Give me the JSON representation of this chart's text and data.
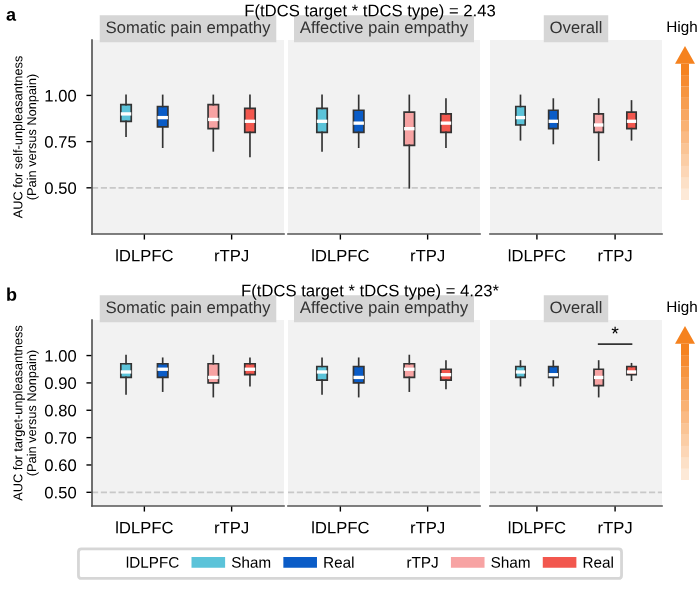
{
  "chart_data": [
    {
      "type": "box",
      "title": "Somatic pain empathy",
      "ylabel": "AUC for self-unpleasantness\n(Pain versus Nonpain)",
      "categories": [
        "lDLPFC",
        "rTPJ"
      ],
      "ylim": [
        0.25,
        1.3
      ],
      "yticks": [
        {
          "value": 0.5,
          "label": "0.50"
        },
        {
          "value": 0.75,
          "label": "0.75"
        },
        {
          "value": 1.0,
          "label": "1.00"
        }
      ],
      "ref_lines": [
        {
          "axis": "y",
          "value": 0.5,
          "color": "#c8c8c8",
          "line_style": "dashed"
        }
      ],
      "annotations": [
        "a",
        "F(tDCS target * tDCS type) = 2.43"
      ],
      "grid": false,
      "legend": "bottom",
      "series": [
        {
          "name": "Sham",
          "color": "#5bc3d9",
          "boxes": [
            {
              "low": 0.78,
              "q1": 0.86,
              "median": 0.9,
              "q3": 0.95,
              "high": 1.0
            },
            null
          ]
        },
        {
          "name": "Real",
          "color": "#0a5cc7",
          "boxes": [
            {
              "low": 0.72,
              "q1": 0.83,
              "median": 0.88,
              "q3": 0.94,
              "high": 1.0
            },
            null
          ]
        },
        {
          "name": "Sham",
          "color": "#f7a3a3",
          "boxes": [
            null,
            {
              "low": 0.7,
              "q1": 0.82,
              "median": 0.87,
              "q3": 0.95,
              "high": 1.0
            }
          ]
        },
        {
          "name": "Real",
          "color": "#f2574e",
          "boxes": [
            null,
            {
              "low": 0.67,
              "q1": 0.8,
              "median": 0.86,
              "q3": 0.93,
              "high": 1.0
            }
          ]
        }
      ]
    },
    {
      "type": "box",
      "title": "Affective pain empathy",
      "categories": [
        "lDLPFC",
        "rTPJ"
      ],
      "ylim": [
        0.25,
        1.3
      ],
      "tick_labels": "x",
      "ref_lines": [
        {
          "axis": "y",
          "value": 0.5,
          "color": "#c8c8c8",
          "line_style": "dashed"
        }
      ],
      "grid": false,
      "series": [
        {
          "color": "#5bc3d9",
          "boxes": [
            {
              "low": 0.7,
              "q1": 0.8,
              "median": 0.86,
              "q3": 0.93,
              "high": 1.0
            },
            null
          ]
        },
        {
          "color": "#0a5cc7",
          "boxes": [
            {
              "low": 0.72,
              "q1": 0.8,
              "median": 0.85,
              "q3": 0.92,
              "high": 1.0
            },
            null
          ]
        },
        {
          "color": "#f7a3a3",
          "boxes": [
            null,
            {
              "low": 0.5,
              "q1": 0.73,
              "median": 0.82,
              "q3": 0.91,
              "high": 1.0
            }
          ]
        },
        {
          "color": "#f2574e",
          "boxes": [
            null,
            {
              "low": 0.72,
              "q1": 0.8,
              "median": 0.85,
              "q3": 0.9,
              "high": 0.98
            }
          ]
        }
      ]
    },
    {
      "type": "box",
      "title": "Overall",
      "categories": [
        "lDLPFC",
        "rTPJ"
      ],
      "ylim": [
        0.25,
        1.3
      ],
      "tick_labels": "x",
      "ref_lines": [
        {
          "axis": "y",
          "value": 0.5,
          "color": "#c8c8c8",
          "line_style": "dashed"
        }
      ],
      "annotations": [
        "High"
      ],
      "grid": false,
      "series": [
        {
          "color": "#5bc3d9",
          "boxes": [
            {
              "low": 0.76,
              "q1": 0.84,
              "median": 0.88,
              "q3": 0.94,
              "high": 1.0
            },
            null
          ]
        },
        {
          "color": "#0a5cc7",
          "boxes": [
            {
              "low": 0.74,
              "q1": 0.82,
              "median": 0.86,
              "q3": 0.92,
              "high": 0.98
            },
            null
          ]
        },
        {
          "color": "#f7a3a3",
          "boxes": [
            null,
            {
              "low": 0.65,
              "q1": 0.8,
              "median": 0.84,
              "q3": 0.9,
              "high": 0.98
            }
          ]
        },
        {
          "color": "#f2574e",
          "boxes": [
            null,
            {
              "low": 0.76,
              "q1": 0.82,
              "median": 0.86,
              "q3": 0.91,
              "high": 0.97
            }
          ]
        }
      ]
    },
    {
      "type": "box",
      "title": "Somatic pain empathy",
      "ylabel": "AUC for target-unpleasantness\n(Pain versus Nonpain)",
      "categories": [
        "lDLPFC",
        "rTPJ"
      ],
      "ylim": [
        0.45,
        1.13
      ],
      "yticks": [
        {
          "value": 0.5,
          "label": "0.50"
        },
        {
          "value": 0.6,
          "label": "0.60"
        },
        {
          "value": 0.7,
          "label": "0.70"
        },
        {
          "value": 0.8,
          "label": "0.80"
        },
        {
          "value": 0.9,
          "label": "0.90"
        },
        {
          "value": 1.0,
          "label": "1.00"
        }
      ],
      "ref_lines": [
        {
          "axis": "y",
          "value": 0.5,
          "color": "#c8c8c8",
          "line_style": "dashed"
        }
      ],
      "annotations": [
        "b",
        "F(tDCS target * tDCS type) = 4.23*"
      ],
      "grid": false,
      "series": [
        {
          "color": "#5bc3d9",
          "boxes": [
            {
              "low": 0.86,
              "q1": 0.92,
              "median": 0.94,
              "q3": 0.97,
              "high": 1.0
            },
            null
          ]
        },
        {
          "color": "#0a5cc7",
          "boxes": [
            {
              "low": 0.87,
              "q1": 0.92,
              "median": 0.95,
              "q3": 0.97,
              "high": 0.99
            },
            null
          ]
        },
        {
          "color": "#f7a3a3",
          "boxes": [
            null,
            {
              "low": 0.85,
              "q1": 0.9,
              "median": 0.92,
              "q3": 0.97,
              "high": 1.0
            }
          ]
        },
        {
          "color": "#f2574e",
          "boxes": [
            null,
            {
              "low": 0.89,
              "q1": 0.93,
              "median": 0.95,
              "q3": 0.97,
              "high": 0.99
            }
          ]
        }
      ]
    },
    {
      "type": "box",
      "title": "Affective pain empathy",
      "categories": [
        "lDLPFC",
        "rTPJ"
      ],
      "ylim": [
        0.45,
        1.13
      ],
      "tick_labels": "x",
      "ref_lines": [
        {
          "axis": "y",
          "value": 0.5,
          "color": "#c8c8c8",
          "line_style": "dashed"
        }
      ],
      "grid": false,
      "series": [
        {
          "color": "#5bc3d9",
          "boxes": [
            {
              "low": 0.86,
              "q1": 0.91,
              "median": 0.94,
              "q3": 0.96,
              "high": 0.99
            },
            null
          ]
        },
        {
          "color": "#0a5cc7",
          "boxes": [
            {
              "low": 0.85,
              "q1": 0.9,
              "median": 0.92,
              "q3": 0.96,
              "high": 0.99
            },
            null
          ]
        },
        {
          "color": "#f7a3a3",
          "boxes": [
            null,
            {
              "low": 0.87,
              "q1": 0.92,
              "median": 0.95,
              "q3": 0.97,
              "high": 1.0
            }
          ]
        },
        {
          "color": "#f2574e",
          "boxes": [
            null,
            {
              "low": 0.88,
              "q1": 0.91,
              "median": 0.93,
              "q3": 0.95,
              "high": 0.98
            }
          ]
        }
      ]
    },
    {
      "type": "box",
      "title": "Overall",
      "categories": [
        "lDLPFC",
        "rTPJ"
      ],
      "ylim": [
        0.45,
        1.13
      ],
      "tick_labels": "x",
      "ref_lines": [
        {
          "axis": "y",
          "value": 0.5,
          "color": "#c8c8c8",
          "line_style": "dashed"
        }
      ],
      "annotations": [
        "*",
        "High"
      ],
      "grid": false,
      "series": [
        {
          "color": "#5bc3d9",
          "boxes": [
            {
              "low": 0.89,
              "q1": 0.92,
              "median": 0.94,
              "q3": 0.96,
              "high": 0.98
            },
            null
          ]
        },
        {
          "color": "#0a5cc7",
          "boxes": [
            {
              "low": 0.89,
              "q1": 0.92,
              "median": 0.93,
              "q3": 0.96,
              "high": 0.98
            },
            null
          ]
        },
        {
          "color": "#f7a3a3",
          "boxes": [
            null,
            {
              "low": 0.85,
              "q1": 0.89,
              "median": 0.92,
              "q3": 0.95,
              "high": 0.98
            }
          ]
        },
        {
          "color": "#f2574e",
          "boxes": [
            null,
            {
              "low": 0.91,
              "q1": 0.93,
              "median": 0.94,
              "q3": 0.96,
              "high": 0.97
            }
          ]
        }
      ]
    }
  ]
}
